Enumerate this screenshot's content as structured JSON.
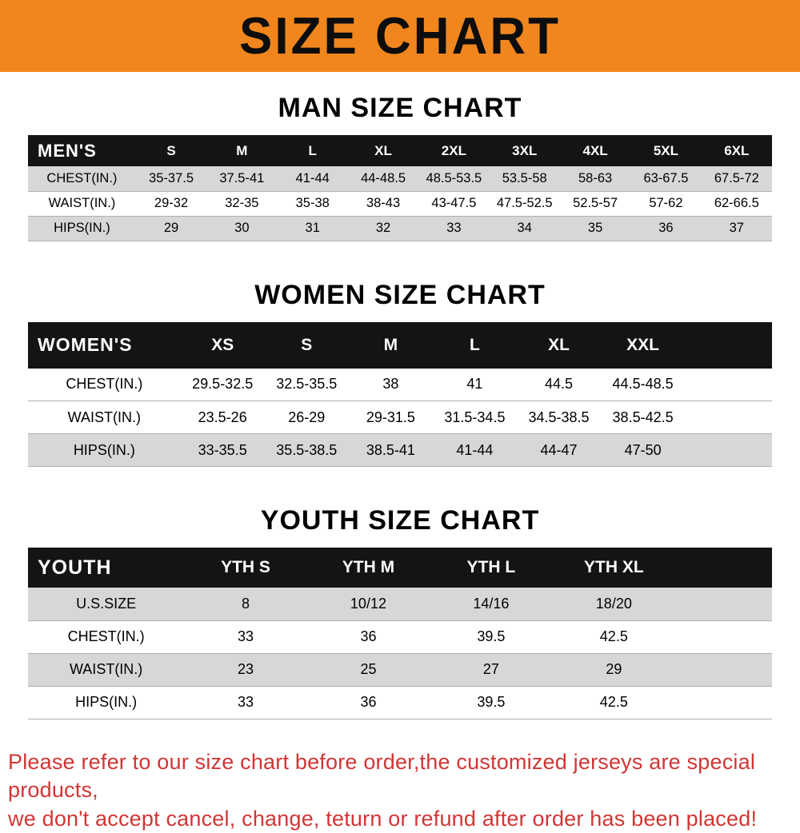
{
  "banner": {
    "title": "SIZE CHART"
  },
  "colors": {
    "banner_orange": "#f1861e",
    "header_black": "#141414",
    "row_gray": "#d7d7d7",
    "footer_red": "#d23535"
  },
  "sections": [
    {
      "heading": "MAN SIZE CHART",
      "table": {
        "corner": "MEN'S",
        "columns": [
          "S",
          "M",
          "L",
          "XL",
          "2XL",
          "3XL",
          "4XL",
          "5XL",
          "6XL"
        ],
        "rows": [
          {
            "label": "CHEST(IN.)",
            "shaded": true,
            "values": [
              "35-37.5",
              "37.5-41",
              "41-44",
              "44-48.5",
              "48.5-53.5",
              "53.5-58",
              "58-63",
              "63-67.5",
              "67.5-72"
            ]
          },
          {
            "label": "WAIST(IN.)",
            "shaded": false,
            "values": [
              "29-32",
              "32-35",
              "35-38",
              "38-43",
              "43-47.5",
              "47.5-52.5",
              "52.5-57",
              "57-62",
              "62-66.5"
            ]
          },
          {
            "label": "HIPS(IN.)",
            "shaded": true,
            "values": [
              "29",
              "30",
              "31",
              "32",
              "33",
              "34",
              "35",
              "36",
              "37"
            ]
          }
        ]
      }
    },
    {
      "heading": "WOMEN SIZE CHART",
      "table": {
        "corner": "WOMEN'S",
        "columns": [
          "XS",
          "S",
          "M",
          "L",
          "XL",
          "XXL"
        ],
        "rows": [
          {
            "label": "CHEST(IN.)",
            "shaded": false,
            "values": [
              "29.5-32.5",
              "32.5-35.5",
              "38",
              "41",
              "44.5",
              "44.5-48.5"
            ]
          },
          {
            "label": "WAIST(IN.)",
            "shaded": false,
            "values": [
              "23.5-26",
              "26-29",
              "29-31.5",
              "31.5-34.5",
              "34.5-38.5",
              "38.5-42.5"
            ]
          },
          {
            "label": "HIPS(IN.)",
            "shaded": true,
            "values": [
              "33-35.5",
              "35.5-38.5",
              "38.5-41",
              "41-44",
              "44-47",
              "47-50"
            ]
          }
        ]
      }
    },
    {
      "heading": "YOUTH SIZE CHART",
      "table": {
        "corner": "YOUTH",
        "columns": [
          "YTH S",
          "YTH M",
          "YTH L",
          "YTH XL"
        ],
        "rows": [
          {
            "label": "U.S.SIZE",
            "shaded": true,
            "values": [
              "8",
              "10/12",
              "14/16",
              "18/20"
            ]
          },
          {
            "label": "CHEST(IN.)",
            "shaded": false,
            "values": [
              "33",
              "36",
              "39.5",
              "42.5"
            ]
          },
          {
            "label": "WAIST(IN.)",
            "shaded": true,
            "values": [
              "23",
              "25",
              "27",
              "29"
            ]
          },
          {
            "label": "HIPS(IN.)",
            "shaded": false,
            "values": [
              "33",
              "36",
              "39.5",
              "42.5"
            ]
          }
        ]
      }
    }
  ],
  "footer": {
    "line1": "Please refer to our size chart before order,the customized jerseys are special products,",
    "line2": "we don't accept cancel, change, teturn or refund after order has been placed!"
  }
}
